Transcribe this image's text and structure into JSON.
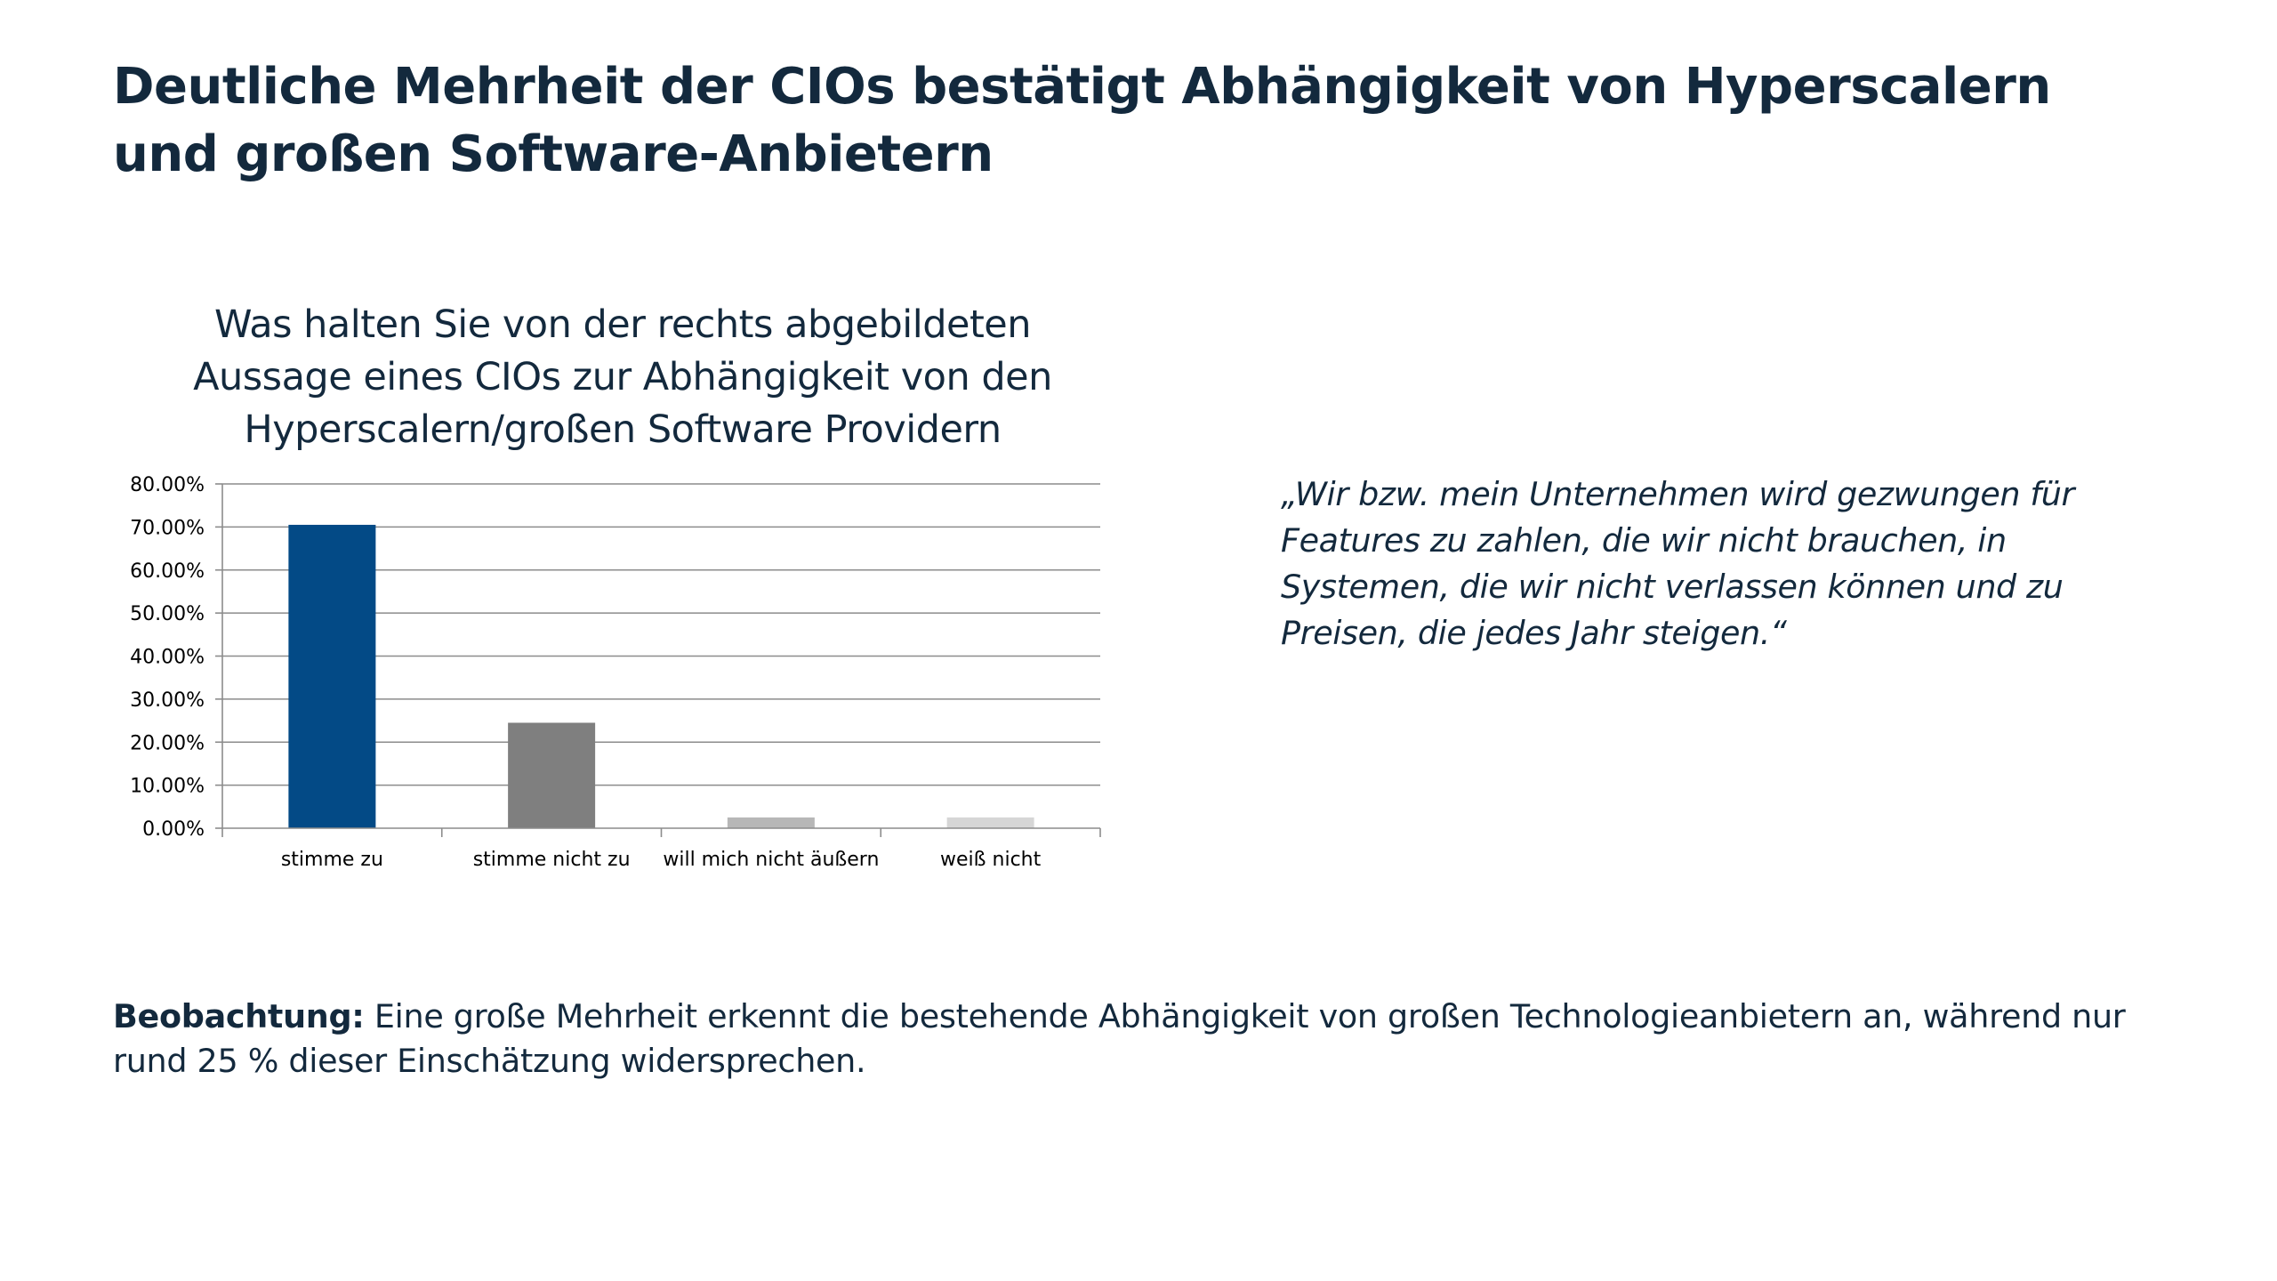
{
  "page": {
    "title": "Deutliche Mehrheit der CIOs bestätigt Abhängigkeit von Hyperscalern und großen Software-Anbietern"
  },
  "chart_data": {
    "type": "bar",
    "title": "Was halten Sie von der rechts abgebildeten Aussage eines CIOs zur Abhängigkeit von den Hyperscalern/großen Software Providern",
    "categories": [
      "stimme zu",
      "stimme nicht zu",
      "will mich nicht äußern",
      "weiß nicht"
    ],
    "values": [
      70.5,
      24.5,
      2.5,
      2.5
    ],
    "colors": [
      "#034a86",
      "#7f7f7f",
      "#b7b7b7",
      "#d6d6d6"
    ],
    "ylim": [
      0,
      80
    ],
    "yticks": [
      "0.00%",
      "10.00%",
      "20.00%",
      "30.00%",
      "40.00%",
      "50.00%",
      "60.00%",
      "70.00%",
      "80.00%"
    ],
    "grid": true,
    "legend": "none",
    "xlabel": "",
    "ylabel": ""
  },
  "quote": {
    "text": "„Wir bzw. mein Unternehmen wird gezwungen für Features zu zahlen, die wir nicht brauchen, in Systemen, die wir nicht verlassen können und zu Preisen, die jedes Jahr steigen.“"
  },
  "observation": {
    "label": "Beobachtung:",
    "text": " Eine große Mehrheit erkennt die bestehende Abhängigkeit von großen Technologieanbietern an, während nur rund 25 % dieser Einschätzung widersprechen."
  }
}
